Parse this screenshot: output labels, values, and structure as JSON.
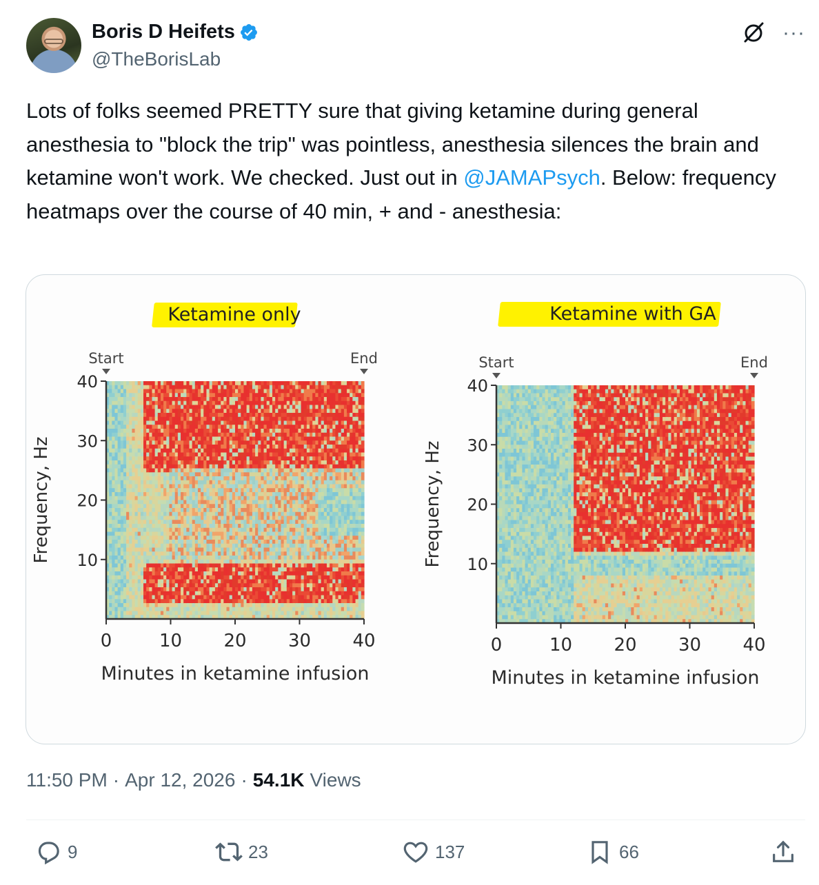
{
  "author": {
    "name": "Boris D Heifets",
    "handle": "@TheBorisLab",
    "verified": true
  },
  "tweet": {
    "text_part1": "Lots of folks seemed PRETTY sure that giving ketamine during general anesthesia to \"block the trip\" was pointless, anesthesia silences the brain and ketamine won't work. We checked. Just out in ",
    "mention": "@JAMAPsych",
    "text_part2": ". Below: frequency heatmaps over the course of 40 min, + and - anesthesia:"
  },
  "meta": {
    "time": "11:50 PM",
    "date": "Apr 12, 2026",
    "views_count": "54.1K",
    "views_label": "Views"
  },
  "actions": {
    "replies": "9",
    "reposts": "23",
    "likes": "137",
    "bookmarks": "66"
  },
  "colors": {
    "accent": "#1d9bf0",
    "text": "#0f1419",
    "muted": "#536471",
    "highlight": "#fff200",
    "heat_high": "#e8312f",
    "heat_mid": "#e9d99a",
    "heat_low": "#6ec2d9"
  },
  "icons": [
    "verified-badge-icon",
    "grok-icon",
    "more-icon",
    "reply-icon",
    "retweet-icon",
    "like-icon",
    "bookmark-icon",
    "share-icon"
  ],
  "chart_data": [
    {
      "type": "heatmap",
      "title": "Ketamine only",
      "xlabel": "Minutes in ketamine infusion",
      "ylabel": "Frequency, Hz",
      "x_ticks": [
        "0",
        "10",
        "20",
        "30",
        "40"
      ],
      "y_ticks": [
        "10",
        "20",
        "30",
        "40"
      ],
      "xlim": [
        0,
        40
      ],
      "ylim": [
        0,
        40
      ],
      "markers": [
        {
          "label": "Start",
          "x": 0
        },
        {
          "label": "End",
          "x": 40
        }
      ],
      "regions": [
        {
          "x": [
            0,
            3
          ],
          "y": [
            0,
            40
          ],
          "power": "low"
        },
        {
          "x": [
            6,
            40
          ],
          "y": [
            25,
            40
          ],
          "power": "high"
        },
        {
          "x": [
            6,
            40
          ],
          "y": [
            3,
            9
          ],
          "power": "high"
        },
        {
          "x": [
            10,
            40
          ],
          "y": [
            10,
            25
          ],
          "power": "mixed"
        },
        {
          "x": [
            33,
            40
          ],
          "y": [
            14,
            22
          ],
          "power": "low"
        }
      ]
    },
    {
      "type": "heatmap",
      "title": "Ketamine with GA",
      "xlabel": "Minutes in ketamine infusion",
      "ylabel": "Frequency, Hz",
      "x_ticks": [
        "0",
        "10",
        "20",
        "30",
        "40"
      ],
      "y_ticks": [
        "10",
        "20",
        "30",
        "40"
      ],
      "xlim": [
        0,
        40
      ],
      "ylim": [
        0,
        40
      ],
      "markers": [
        {
          "label": "Start",
          "x": 0
        },
        {
          "label": "End",
          "x": 40
        }
      ],
      "regions": [
        {
          "x": [
            0,
            12
          ],
          "y": [
            0,
            40
          ],
          "power": "low"
        },
        {
          "x": [
            12,
            40
          ],
          "y": [
            12,
            40
          ],
          "power": "high"
        },
        {
          "x": [
            12,
            40
          ],
          "y": [
            8,
            11
          ],
          "power": "low"
        },
        {
          "x": [
            16,
            40
          ],
          "y": [
            14,
            28
          ],
          "power": "high"
        }
      ]
    }
  ]
}
